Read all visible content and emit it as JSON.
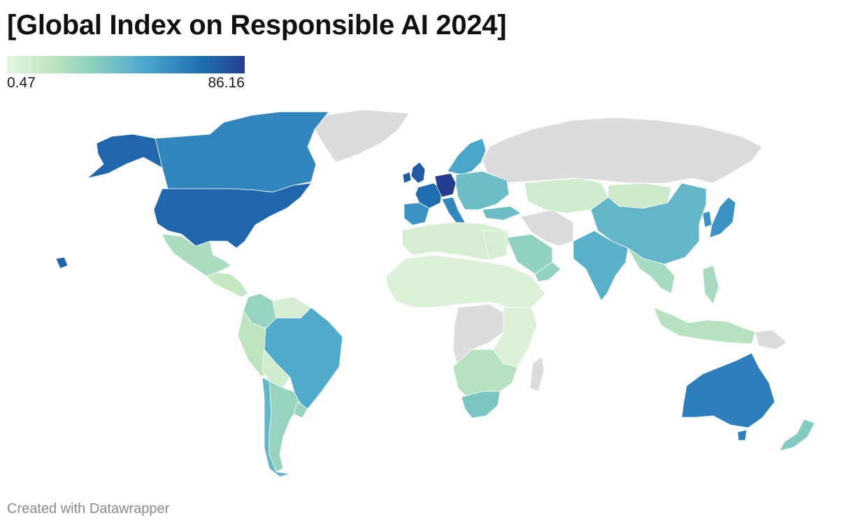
{
  "title": "[Global Index on Responsible AI 2024]",
  "legend": {
    "min_label": "0.47",
    "max_label": "86.16",
    "min": 0.47,
    "max": 86.16
  },
  "footer": "Created with Datawrapper",
  "colors": {
    "no_data": "#dcdcdc",
    "scale": [
      "#e6f5e0",
      "#bfe5bf",
      "#87cdc0",
      "#4aa7cc",
      "#1f6fb2",
      "#253d8e"
    ]
  },
  "chart_data": {
    "type": "choropleth",
    "title": "[Global Index on Responsible AI 2024]",
    "value_range": [
      0.47,
      86.16
    ],
    "regions": [
      {
        "name": "Greenland",
        "value": null
      },
      {
        "name": "Russia",
        "value": null
      },
      {
        "name": "Canada",
        "value": 62
      },
      {
        "name": "Alaska (United States)",
        "value": 72
      },
      {
        "name": "United States",
        "value": 72
      },
      {
        "name": "Mexico",
        "value": 24
      },
      {
        "name": "Central America",
        "value": 15
      },
      {
        "name": "Colombia",
        "value": 30
      },
      {
        "name": "Venezuela",
        "value": 8
      },
      {
        "name": "Brazil",
        "value": 50
      },
      {
        "name": "Peru",
        "value": 18
      },
      {
        "name": "Bolivia",
        "value": 10
      },
      {
        "name": "Argentina",
        "value": 30
      },
      {
        "name": "Chile",
        "value": 45
      },
      {
        "name": "United Kingdom",
        "value": 76
      },
      {
        "name": "France",
        "value": 70
      },
      {
        "name": "Germany",
        "value": 86.16
      },
      {
        "name": "Spain",
        "value": 58
      },
      {
        "name": "Italy",
        "value": 62
      },
      {
        "name": "Nordics",
        "value": 52
      },
      {
        "name": "Eastern Europe",
        "value": 42
      },
      {
        "name": "North Africa",
        "value": 8
      },
      {
        "name": "Sahel",
        "value": 5
      },
      {
        "name": "Central Africa",
        "value": null
      },
      {
        "name": "Southern Africa",
        "value": 20
      },
      {
        "name": "South Africa",
        "value": 38
      },
      {
        "name": "Madagascar",
        "value": null
      },
      {
        "name": "Saudi Arabia",
        "value": 32
      },
      {
        "name": "Iran / Afghanistan",
        "value": null
      },
      {
        "name": "Central Asia",
        "value": 10
      },
      {
        "name": "Mongolia",
        "value": 12
      },
      {
        "name": "China",
        "value": 45
      },
      {
        "name": "India",
        "value": 48
      },
      {
        "name": "Southeast Asia",
        "value": 25
      },
      {
        "name": "Japan",
        "value": 58
      },
      {
        "name": "Indonesia",
        "value": 20
      },
      {
        "name": "Papua New Guinea",
        "value": null
      },
      {
        "name": "Australia",
        "value": 64
      },
      {
        "name": "New Zealand",
        "value": 36
      }
    ]
  }
}
